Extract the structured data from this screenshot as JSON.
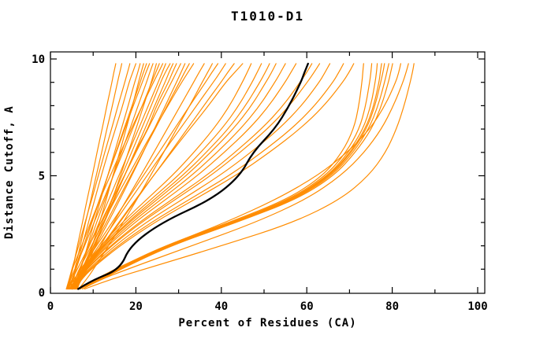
{
  "title": "T1010-D1",
  "axes": {
    "x": {
      "label": "Percent of Residues (CA)",
      "tick_labels": [
        "0",
        "20",
        "40",
        "60",
        "80",
        "100"
      ],
      "major_ticks": [
        0,
        20,
        40,
        60,
        80,
        100
      ],
      "minor_ticks": [
        10,
        30,
        50,
        70,
        90
      ],
      "range": [
        0,
        100
      ]
    },
    "y": {
      "label": "Distance Cutoff, A",
      "tick_labels": [
        "0",
        "5",
        "10"
      ],
      "major_ticks": [
        0,
        5,
        10
      ],
      "minor_ticks": [
        1,
        2,
        3,
        4,
        6,
        7,
        8,
        9
      ],
      "range": [
        0,
        10
      ]
    }
  },
  "colors": {
    "prediction": "#ff8c00",
    "highlight": "#000000",
    "axis": "#000000",
    "background": "#ffffff"
  },
  "chart_data": {
    "type": "line",
    "title": "T1010-D1",
    "xlabel": "Percent of Residues (CA)",
    "ylabel": "Distance Cutoff, A",
    "xlim": [
      0,
      100
    ],
    "ylim": [
      0,
      10.3
    ],
    "grid": false,
    "legend": "none",
    "description": "Cumulative percent of CA residues (x) under distance cutoff (y); many orange prediction curves and one black highlighted curve",
    "y_levels": [
      0.15,
      0.5,
      1,
      2,
      3,
      4,
      5,
      6,
      7,
      8,
      9,
      9.4,
      9.8
    ],
    "series": [
      {
        "name": "model-01",
        "color": "#ff8c00",
        "x": [
          4.2,
          4.6,
          5.2,
          6.3,
          7.5,
          8.6,
          9.8,
          10.9,
          12.1,
          13.2,
          14.4,
          14.8,
          15.3
        ]
      },
      {
        "name": "model-02",
        "color": "#ff8c00",
        "x": [
          4.7,
          5.1,
          5.7,
          7.0,
          8.2,
          9.5,
          10.7,
          12.0,
          13.2,
          14.5,
          15.7,
          16.2,
          16.7
        ]
      },
      {
        "name": "model-03",
        "color": "#ff8c00",
        "x": [
          3.7,
          4.3,
          5.0,
          6.6,
          8.1,
          9.7,
          11.2,
          12.7,
          14.3,
          15.8,
          17.4,
          18.0,
          18.6
        ]
      },
      {
        "name": "model-04",
        "color": "#ff8c00",
        "x": [
          5.1,
          5.4,
          5.9,
          7.4,
          8.9,
          10.4,
          11.9,
          13.5,
          15.2,
          16.9,
          18.4,
          19.2,
          20.0
        ]
      },
      {
        "name": "model-05",
        "color": "#ff8c00",
        "x": [
          5.7,
          6.3,
          7.1,
          8.7,
          10.2,
          11.8,
          13.4,
          15.0,
          16.6,
          18.2,
          19.7,
          20.4,
          21.0
        ]
      },
      {
        "name": "model-06",
        "color": "#ff8c00",
        "x": [
          6.3,
          7.0,
          8.0,
          9.8,
          11.5,
          13.1,
          14.6,
          16.2,
          17.7,
          19.2,
          20.6,
          21.2,
          21.8
        ]
      },
      {
        "name": "model-07",
        "color": "#ff8c00",
        "x": [
          4.3,
          4.9,
          5.9,
          7.8,
          9.7,
          11.6,
          13.4,
          15.3,
          17.2,
          19.1,
          21.0,
          21.7,
          22.5
        ]
      },
      {
        "name": "model-08",
        "color": "#ff8c00",
        "x": [
          4.6,
          5.1,
          6.0,
          7.8,
          9.6,
          11.5,
          13.4,
          15.4,
          17.4,
          19.4,
          21.5,
          22.3,
          23.2
        ]
      },
      {
        "name": "model-09",
        "color": "#ff8c00",
        "x": [
          5.3,
          6.0,
          6.9,
          8.9,
          10.8,
          12.8,
          14.7,
          16.6,
          18.6,
          20.5,
          22.5,
          23.2,
          24.0
        ]
      },
      {
        "name": "model-10",
        "color": "#ff8c00",
        "x": [
          6.0,
          7.2,
          8.3,
          10.5,
          12.5,
          14.5,
          16.4,
          18.2,
          20.0,
          21.8,
          23.6,
          24.2,
          24.8
        ]
      },
      {
        "name": "model-11",
        "color": "#ff8c00",
        "x": [
          3.8,
          4.6,
          5.7,
          8.0,
          10.2,
          12.5,
          14.7,
          17.0,
          19.2,
          21.5,
          23.7,
          24.6,
          25.5
        ]
      },
      {
        "name": "model-12",
        "color": "#ff8c00",
        "x": [
          4.1,
          4.4,
          5.1,
          7.3,
          9.4,
          11.6,
          14.0,
          16.4,
          18.9,
          21.5,
          24.1,
          25.2,
          26.3
        ]
      },
      {
        "name": "model-13",
        "color": "#ff8c00",
        "x": [
          4.8,
          5.6,
          6.8,
          9.1,
          11.4,
          13.7,
          16.0,
          18.3,
          20.6,
          22.9,
          25.2,
          26.1,
          27.0
        ]
      },
      {
        "name": "model-14",
        "color": "#ff8c00",
        "x": [
          5.4,
          6.2,
          7.4,
          9.8,
          12.1,
          14.4,
          16.7,
          19.0,
          21.3,
          23.6,
          25.8,
          26.8,
          28.0
        ]
      },
      {
        "name": "model-15",
        "color": "#ff8c00",
        "x": [
          5.9,
          6.7,
          7.9,
          10.2,
          12.6,
          15.0,
          17.3,
          19.7,
          22.1,
          24.4,
          26.8,
          27.7,
          28.7
        ]
      },
      {
        "name": "model-16",
        "color": "#ff8c00",
        "x": [
          6.1,
          6.6,
          7.6,
          10.1,
          12.6,
          14.8,
          17.4,
          19.7,
          22.8,
          24.8,
          27.6,
          28.5,
          29.5
        ]
      },
      {
        "name": "model-17",
        "color": "#ff8c00",
        "x": [
          3.9,
          4.9,
          6.3,
          9.0,
          11.8,
          14.5,
          17.3,
          20.0,
          22.8,
          25.5,
          28.3,
          29.4,
          30.5
        ]
      },
      {
        "name": "model-18",
        "color": "#ff8c00",
        "x": [
          4.5,
          5.9,
          7.6,
          10.6,
          13.5,
          16.3,
          19.0,
          21.7,
          24.3,
          26.9,
          29.5,
          30.5,
          31.5
        ]
      },
      {
        "name": "model-19",
        "color": "#ff8c00",
        "x": [
          4.9,
          5.9,
          7.4,
          10.2,
          13.1,
          15.9,
          18.8,
          21.6,
          24.5,
          27.3,
          30.2,
          31.3,
          32.5
        ]
      },
      {
        "name": "model-20",
        "color": "#ff8c00",
        "x": [
          5.1,
          5.6,
          6.7,
          9.6,
          12.4,
          15.2,
          18.2,
          21.2,
          24.3,
          27.5,
          30.7,
          32.1,
          33.5
        ]
      },
      {
        "name": "model-21",
        "color": "#ff8c00",
        "x": [
          6.0,
          7.0,
          8.6,
          11.7,
          14.8,
          17.9,
          21.1,
          24.2,
          27.3,
          30.4,
          33.5,
          34.7,
          36.0
        ]
      },
      {
        "name": "model-22",
        "color": "#ff8c00",
        "x": [
          6.6,
          8.2,
          10.1,
          13.6,
          17.0,
          20.3,
          23.4,
          26.5,
          29.5,
          32.6,
          35.5,
          36.7,
          37.9
        ]
      },
      {
        "name": "model-23",
        "color": "#ff8c00",
        "x": [
          4.0,
          5.3,
          7.1,
          10.8,
          14.4,
          18.1,
          21.7,
          25.4,
          29.0,
          32.6,
          36.3,
          37.7,
          39.2
        ]
      },
      {
        "name": "model-24",
        "color": "#ff8c00",
        "x": [
          4.4,
          5.7,
          7.6,
          11.3,
          15.0,
          18.8,
          22.6,
          26.4,
          30.3,
          34.2,
          38.1,
          39.6,
          41.0
        ]
      },
      {
        "name": "model-25",
        "color": "#ff8c00",
        "x": [
          5.0,
          6.4,
          8.4,
          12.3,
          16.2,
          20.2,
          24.1,
          28.1,
          32.0,
          35.9,
          39.9,
          41.4,
          43.0
        ]
      },
      {
        "name": "model-26",
        "color": "#ff8c00",
        "x": [
          5.1,
          5.9,
          7.5,
          12.0,
          16.0,
          20.0,
          24.1,
          28.3,
          32.6,
          37.0,
          41.0,
          43.0,
          45.0
        ]
      },
      {
        "name": "model-27",
        "color": "#ff8c00",
        "x": [
          5.0,
          5.8,
          7.5,
          11.7,
          16.8,
          22.6,
          28.5,
          33.6,
          38.2,
          42.0,
          44.9,
          46.0,
          47.0
        ]
      },
      {
        "name": "model-28",
        "color": "#ff8c00",
        "x": [
          5.0,
          5.9,
          7.7,
          12.1,
          17.4,
          23.6,
          29.9,
          35.2,
          40.1,
          44.1,
          47.2,
          48.3,
          49.4
        ]
      },
      {
        "name": "model-29",
        "color": "#ff8c00",
        "x": [
          5.0,
          5.9,
          7.8,
          12.4,
          18.0,
          24.4,
          30.9,
          36.5,
          41.6,
          45.7,
          49.0,
          50.2,
          51.3
        ]
      },
      {
        "name": "model-30",
        "color": "#ff8c00",
        "x": [
          5.0,
          6.0,
          7.9,
          12.6,
          18.4,
          25.1,
          31.8,
          37.5,
          42.8,
          47.1,
          50.4,
          51.7,
          52.8
        ]
      },
      {
        "name": "model-31",
        "color": "#ff8c00",
        "x": [
          5.0,
          6.0,
          8.0,
          13.0,
          19.0,
          26.0,
          33.0,
          39.0,
          44.5,
          49.0,
          52.5,
          53.8,
          55.0
        ]
      },
      {
        "name": "model-32",
        "color": "#ff8c00",
        "x": [
          5.0,
          6.1,
          8.2,
          13.4,
          19.7,
          27.1,
          34.4,
          40.7,
          46.5,
          51.2,
          54.9,
          56.2,
          57.5
        ]
      },
      {
        "name": "model-33",
        "color": "#ff8c00",
        "x": [
          5.2,
          6.3,
          8.4,
          14.0,
          20.7,
          28.6,
          36.5,
          43.2,
          49.4,
          54.5,
          58.4,
          59.9,
          61.2
        ]
      },
      {
        "name": "model-34",
        "color": "#ff8c00",
        "x": [
          5.3,
          6.4,
          8.5,
          14.3,
          21.2,
          29.4,
          37.5,
          44.4,
          50.8,
          56.0,
          60.1,
          61.6,
          63.0
        ]
      },
      {
        "name": "model-35",
        "color": "#ff8c00",
        "x": [
          5.5,
          6.6,
          8.9,
          15.0,
          22.3,
          31.0,
          39.6,
          46.9,
          53.5,
          58.8,
          62.9,
          64.2,
          65.4
        ]
      },
      {
        "name": "model-36",
        "color": "#ff8c00",
        "x": [
          5.6,
          6.8,
          9.2,
          15.7,
          23.5,
          32.7,
          41.8,
          49.5,
          56.4,
          61.9,
          66.1,
          67.4,
          68.6
        ]
      },
      {
        "name": "model-37",
        "color": "#ff8c00",
        "x": [
          5.7,
          7.0,
          9.5,
          16.2,
          24.3,
          33.9,
          43.3,
          51.3,
          58.4,
          64.1,
          68.4,
          69.8,
          71.0
        ]
      },
      {
        "name": "model-38",
        "color": "#ff8c00",
        "x": [
          6.2,
          10.4,
          15.2,
          26.6,
          41.8,
          55.6,
          63.8,
          68.3,
          71.0,
          72.2,
          72.9,
          73.1,
          73.3
        ]
      },
      {
        "name": "model-39",
        "color": "#ff8c00",
        "x": [
          6.3,
          10.7,
          15.6,
          27.0,
          42.3,
          56.2,
          64.5,
          69.2,
          72.3,
          73.8,
          74.7,
          75.0,
          75.2
        ]
      },
      {
        "name": "model-40",
        "color": "#ff8c00",
        "x": [
          6.4,
          10.8,
          15.8,
          27.2,
          42.6,
          56.6,
          65.0,
          69.8,
          73.2,
          75.0,
          76.0,
          76.3,
          76.5
        ]
      },
      {
        "name": "model-41",
        "color": "#ff8c00",
        "x": [
          6.5,
          11.0,
          16.0,
          27.4,
          42.9,
          56.9,
          65.3,
          70.2,
          73.7,
          75.7,
          76.9,
          77.2,
          77.5
        ]
      },
      {
        "name": "model-42",
        "color": "#ff8c00",
        "x": [
          6.5,
          11.0,
          16.0,
          27.5,
          43.0,
          57.0,
          65.5,
          70.5,
          74.0,
          76.0,
          77.3,
          77.8,
          78.2
        ]
      },
      {
        "name": "model-43",
        "color": "#ff8c00",
        "x": [
          6.6,
          11.2,
          16.2,
          27.7,
          43.3,
          57.4,
          65.9,
          70.9,
          74.5,
          76.7,
          78.2,
          78.7,
          79.2
        ]
      },
      {
        "name": "model-44",
        "color": "#ff8c00",
        "x": [
          6.7,
          11.4,
          16.5,
          28.0,
          43.6,
          57.8,
          66.4,
          71.4,
          75.2,
          77.5,
          79.1,
          79.6,
          80.1
        ]
      },
      {
        "name": "model-45",
        "color": "#ff8c00",
        "x": [
          7.0,
          10.0,
          15.0,
          27.0,
          41.0,
          53.0,
          62.5,
          69.5,
          74.8,
          78.3,
          80.8,
          81.5,
          82.0
        ]
      },
      {
        "name": "model-46",
        "color": "#ff8c00",
        "x": [
          7.5,
          11.0,
          18.0,
          33.0,
          48.0,
          60.0,
          68.0,
          73.5,
          77.5,
          80.3,
          82.5,
          83.2,
          83.8
        ]
      },
      {
        "name": "model-47",
        "color": "#ff8c00",
        "x": [
          8.0,
          13.0,
          22.0,
          40.0,
          57.0,
          68.0,
          74.5,
          78.5,
          81.0,
          82.8,
          84.2,
          84.7,
          85.1
        ]
      },
      {
        "name": "highlighted-model",
        "color": "#000000",
        "x": [
          6.5,
          9.5,
          16.3,
          18.6,
          26.0,
          37.9,
          44.4,
          47.3,
          52.5,
          55.9,
          58.6,
          59.4,
          60.3
        ]
      }
    ]
  }
}
